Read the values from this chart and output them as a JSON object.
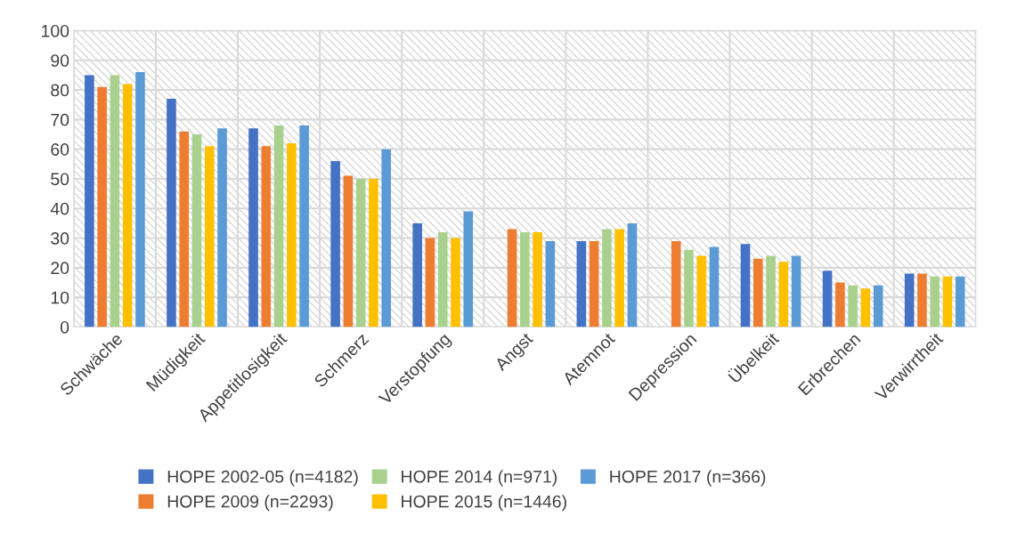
{
  "chart_data": {
    "type": "bar",
    "categories": [
      "Schwäche",
      "Müdigkeit",
      "Appetitlosigkeit",
      "Schmerz",
      "Verstopfung",
      "Angst",
      "Atemnot",
      "Depression",
      "Übelkeit",
      "Erbrechen",
      "Verwirrtheit"
    ],
    "series": [
      {
        "name": "HOPE 2002-05 (n=4182)",
        "color": "#4472c4",
        "values": [
          85,
          77,
          67,
          56,
          35,
          null,
          29,
          null,
          28,
          19,
          18
        ]
      },
      {
        "name": "HOPE 2009 (n=2293)",
        "color": "#ed7d31",
        "values": [
          81,
          66,
          61,
          51,
          30,
          33,
          29,
          29,
          23,
          15,
          18
        ]
      },
      {
        "name": "HOPE 2014 (n=971)",
        "color": "#a9d18e",
        "values": [
          85,
          65,
          68,
          50,
          32,
          32,
          33,
          26,
          24,
          14,
          17
        ]
      },
      {
        "name": "HOPE 2015 (n=1446)",
        "color": "#ffc000",
        "values": [
          82,
          61,
          62,
          50,
          30,
          32,
          33,
          24,
          22,
          13,
          17
        ]
      },
      {
        "name": "HOPE 2017 (n=366)",
        "color": "#5b9bd5",
        "values": [
          86,
          67,
          68,
          60,
          39,
          29,
          35,
          27,
          24,
          14,
          17
        ]
      }
    ],
    "ylim": [
      0,
      100
    ],
    "yticks": [
      0,
      10,
      20,
      30,
      40,
      50,
      60,
      70,
      80,
      90,
      100
    ],
    "grid": true,
    "legend": "bottom"
  }
}
